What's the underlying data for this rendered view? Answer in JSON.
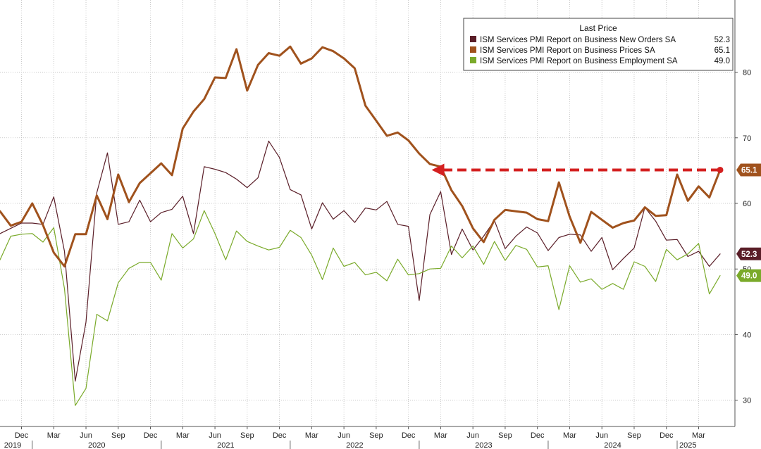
{
  "chart_data": {
    "type": "line",
    "title": "",
    "xlabel": "",
    "ylabel": "",
    "ylim": [
      26,
      91
    ],
    "y_ticks": [
      30,
      40,
      50,
      60,
      70,
      80
    ],
    "grid": true,
    "legend_position": "top-right",
    "legend": {
      "title": "Last Price",
      "entries": [
        {
          "label": "ISM Services PMI Report on Business New Orders SA",
          "value": "52.3",
          "color": "#5a1e28"
        },
        {
          "label": "ISM Services PMI Report on Business Prices SA",
          "value": "65.1",
          "color": "#a0521d"
        },
        {
          "label": "ISM Services PMI Report on Business Employment SA",
          "value": "49.0",
          "color": "#7aaa2a"
        }
      ]
    },
    "x_start": "2019-10",
    "x_month_ticks": [
      {
        "label": "Dec",
        "date": "2019-12"
      },
      {
        "label": "Mar",
        "date": "2020-03"
      },
      {
        "label": "Jun",
        "date": "2020-06"
      },
      {
        "label": "Sep",
        "date": "2020-09"
      },
      {
        "label": "Dec",
        "date": "2020-12"
      },
      {
        "label": "Mar",
        "date": "2021-03"
      },
      {
        "label": "Jun",
        "date": "2021-06"
      },
      {
        "label": "Sep",
        "date": "2021-09"
      },
      {
        "label": "Dec",
        "date": "2021-12"
      },
      {
        "label": "Mar",
        "date": "2022-03"
      },
      {
        "label": "Jun",
        "date": "2022-06"
      },
      {
        "label": "Sep",
        "date": "2022-09"
      },
      {
        "label": "Dec",
        "date": "2022-12"
      },
      {
        "label": "Mar",
        "date": "2023-03"
      },
      {
        "label": "Jun",
        "date": "2023-06"
      },
      {
        "label": "Sep",
        "date": "2023-09"
      },
      {
        "label": "Dec",
        "date": "2023-12"
      },
      {
        "label": "Mar",
        "date": "2024-03"
      },
      {
        "label": "Jun",
        "date": "2024-06"
      },
      {
        "label": "Sep",
        "date": "2024-09"
      },
      {
        "label": "Dec",
        "date": "2024-12"
      },
      {
        "label": "Mar",
        "date": "2025-03"
      }
    ],
    "x_year_labels": [
      {
        "label": "2019",
        "date": "2019-11"
      },
      {
        "label": "2020",
        "date": "2020-07"
      },
      {
        "label": "2021",
        "date": "2021-07"
      },
      {
        "label": "2022",
        "date": "2022-07"
      },
      {
        "label": "2023",
        "date": "2023-07"
      },
      {
        "label": "2024",
        "date": "2024-07"
      },
      {
        "label": "2025",
        "date": "2025-02"
      }
    ],
    "series": [
      {
        "name": "ISM Services PMI Report on Business Prices SA",
        "color": "#a0521d",
        "emphasis": "thick",
        "last_label": "65.1",
        "values": [
          58.8,
          56.6,
          57.2,
          60.0,
          56.7,
          52.5,
          50.4,
          55.3,
          55.3,
          61.2,
          57.6,
          64.4,
          60.2,
          63.1,
          64.6,
          66.1,
          64.3,
          71.4,
          74.0,
          75.9,
          79.2,
          79.1,
          83.5,
          77.2,
          81.1,
          82.9,
          82.5,
          83.9,
          81.3,
          82.1,
          83.8,
          83.2,
          82.1,
          80.6,
          74.9,
          72.6,
          70.3,
          70.8,
          69.6,
          67.6,
          66.0,
          65.6,
          62.0,
          59.6,
          56.2,
          54.1,
          57.5,
          59.0,
          58.8,
          58.6,
          57.6,
          57.3,
          63.2,
          58.0,
          54.0,
          58.7,
          57.5,
          56.3,
          57.0,
          57.4,
          59.4,
          58.1,
          58.2,
          64.4,
          60.4,
          62.6,
          60.9,
          65.1
        ]
      },
      {
        "name": "ISM Services PMI Report on Business New Orders SA",
        "color": "#5a1e28",
        "emphasis": "thin",
        "last_label": "52.3",
        "values": [
          55.4,
          56.2,
          57.0,
          57.0,
          56.8,
          61.0,
          52.7,
          32.9,
          41.9,
          61.6,
          67.7,
          56.8,
          57.2,
          60.5,
          57.2,
          58.6,
          59.1,
          61.1,
          55.4,
          65.6,
          65.2,
          64.7,
          63.7,
          62.4,
          63.9,
          69.5,
          67.0,
          62.1,
          61.3,
          56.1,
          60.1,
          57.6,
          58.9,
          57.1,
          59.3,
          59.0,
          60.3,
          56.8,
          56.5,
          45.2,
          58.3,
          61.8,
          52.2,
          56.1,
          52.9,
          55.0,
          57.4,
          53.1,
          55.0,
          56.4,
          55.5,
          52.8,
          54.8,
          55.3,
          55.2,
          52.7,
          54.8,
          49.9,
          51.6,
          53.2,
          59.4,
          57.3,
          54.4,
          54.5,
          51.9,
          52.7,
          50.4,
          52.3
        ]
      },
      {
        "name": "ISM Services PMI Report on Business Employment SA",
        "color": "#7aaa2a",
        "emphasis": "thin",
        "last_label": "49.0",
        "values": [
          51.4,
          55.0,
          55.3,
          55.4,
          54.1,
          56.3,
          47.0,
          29.2,
          31.8,
          43.1,
          42.1,
          47.9,
          50.1,
          51.0,
          51.0,
          48.3,
          55.4,
          53.2,
          54.6,
          58.9,
          55.4,
          51.4,
          55.8,
          54.2,
          53.5,
          52.9,
          53.3,
          55.9,
          54.8,
          52.1,
          48.4,
          53.2,
          50.4,
          51.0,
          49.1,
          49.5,
          48.2,
          51.5,
          49.1,
          49.3,
          50.0,
          50.1,
          53.5,
          51.7,
          53.5,
          50.7,
          54.2,
          51.3,
          53.6,
          53.0,
          50.3,
          50.5,
          43.8,
          50.5,
          48.0,
          48.5,
          46.9,
          47.8,
          46.9,
          51.1,
          50.4,
          48.1,
          53.0,
          51.4,
          52.3,
          53.9,
          46.2,
          49.0
        ]
      }
    ],
    "annotation": {
      "type": "dashed-arrow",
      "color": "#d42020",
      "from_date": "2025-05",
      "to_date": "2023-02",
      "value": 65.1
    }
  }
}
